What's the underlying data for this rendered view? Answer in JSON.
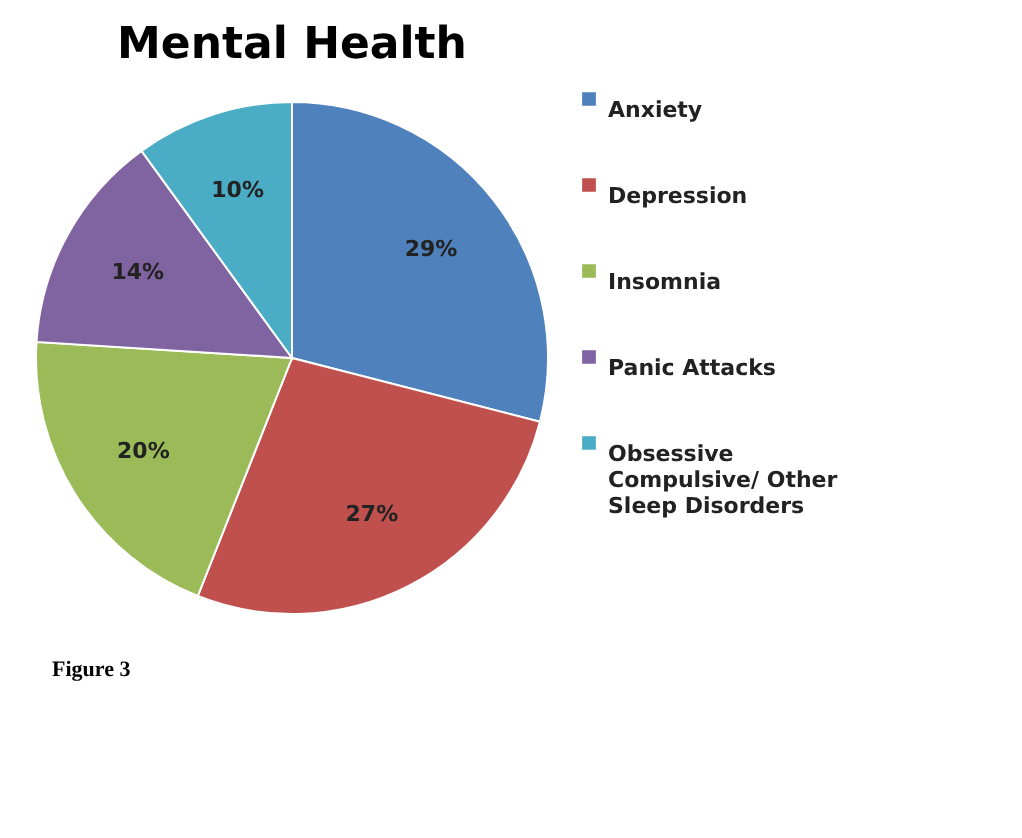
{
  "chart_data": {
    "type": "pie",
    "title": "Mental Health",
    "categories": [
      "Anxiety",
      "Depression",
      "Insomnia",
      "Panic Attacks",
      "Obsessive Compulsive/ Other Sleep Disorders"
    ],
    "values": [
      29,
      27,
      20,
      14,
      10
    ],
    "colors": [
      "#4f81bd",
      "#c0504d",
      "#9bbb59",
      "#8064a2",
      "#4bacc6"
    ],
    "value_labels": [
      "29%",
      "27%",
      "20%",
      "14%",
      "10%"
    ],
    "legend": "right",
    "annotations": [
      "Figure 3"
    ]
  }
}
